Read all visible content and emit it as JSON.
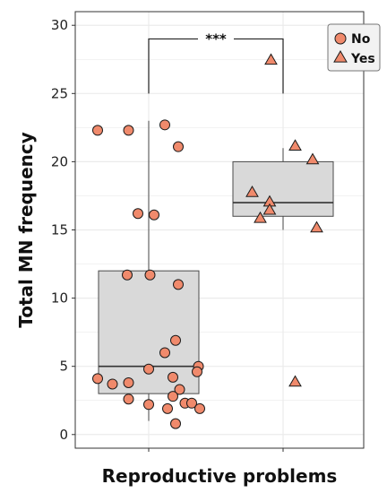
{
  "chart_data": {
    "type": "boxplot",
    "xlabel": "Reproductive problems",
    "ylabel": "Total MN frequency",
    "ylim": [
      -1,
      31
    ],
    "yticks": [
      0,
      5,
      10,
      15,
      20,
      25,
      30
    ],
    "grid": true,
    "legend_position": "top-right",
    "legend": [
      {
        "label": "No",
        "shape": "circle"
      },
      {
        "label": "Yes",
        "shape": "triangle"
      }
    ],
    "groups": [
      {
        "label": "No",
        "shape": "circle",
        "box": {
          "q1": 3,
          "median": 5,
          "q3": 12,
          "whisker_low": 1,
          "whisker_high": 23
        },
        "points": [
          {
            "offset": -0.38,
            "y": 22.3
          },
          {
            "offset": -0.15,
            "y": 22.3
          },
          {
            "offset": 0.12,
            "y": 22.7
          },
          {
            "offset": 0.22,
            "y": 21.1
          },
          {
            "offset": -0.08,
            "y": 16.2
          },
          {
            "offset": 0.04,
            "y": 16.1
          },
          {
            "offset": -0.16,
            "y": 11.7
          },
          {
            "offset": 0.01,
            "y": 11.7
          },
          {
            "offset": 0.22,
            "y": 11.0
          },
          {
            "offset": 0.2,
            "y": 6.9
          },
          {
            "offset": 0.12,
            "y": 6.0
          },
          {
            "offset": 0.37,
            "y": 5.0
          },
          {
            "offset": 0.36,
            "y": 4.6
          },
          {
            "offset": 0.0,
            "y": 4.8
          },
          {
            "offset": 0.18,
            "y": 4.2
          },
          {
            "offset": -0.38,
            "y": 4.1
          },
          {
            "offset": -0.27,
            "y": 3.7
          },
          {
            "offset": -0.15,
            "y": 3.8
          },
          {
            "offset": 0.23,
            "y": 3.3
          },
          {
            "offset": 0.18,
            "y": 2.8
          },
          {
            "offset": -0.15,
            "y": 2.6
          },
          {
            "offset": 0.27,
            "y": 2.3
          },
          {
            "offset": 0.32,
            "y": 2.3
          },
          {
            "offset": 0.0,
            "y": 2.2
          },
          {
            "offset": 0.14,
            "y": 1.9
          },
          {
            "offset": 0.38,
            "y": 1.9
          },
          {
            "offset": 0.2,
            "y": 0.8
          }
        ]
      },
      {
        "label": "Yes",
        "shape": "triangle",
        "box": {
          "q1": 16,
          "median": 17,
          "q3": 20,
          "whisker_low": 15,
          "whisker_high": 21
        },
        "points": [
          {
            "offset": -0.09,
            "y": 27.4
          },
          {
            "offset": 0.09,
            "y": 21.1
          },
          {
            "offset": 0.22,
            "y": 20.1
          },
          {
            "offset": -0.23,
            "y": 17.7
          },
          {
            "offset": -0.1,
            "y": 17.0
          },
          {
            "offset": -0.1,
            "y": 16.4
          },
          {
            "offset": -0.17,
            "y": 15.8
          },
          {
            "offset": 0.25,
            "y": 15.1
          },
          {
            "offset": 0.09,
            "y": 3.8
          }
        ]
      }
    ],
    "significance": {
      "label": "***",
      "y_top": 29.0,
      "y_bottom": 25.0
    }
  },
  "colors": {
    "point_fill": "#f08a6c",
    "point_stroke": "#1a1a1a",
    "box_fill": "#d9d9d9",
    "box_stroke": "#4a4a4a",
    "grid": "#ebebeb",
    "panel_border": "#333333"
  }
}
